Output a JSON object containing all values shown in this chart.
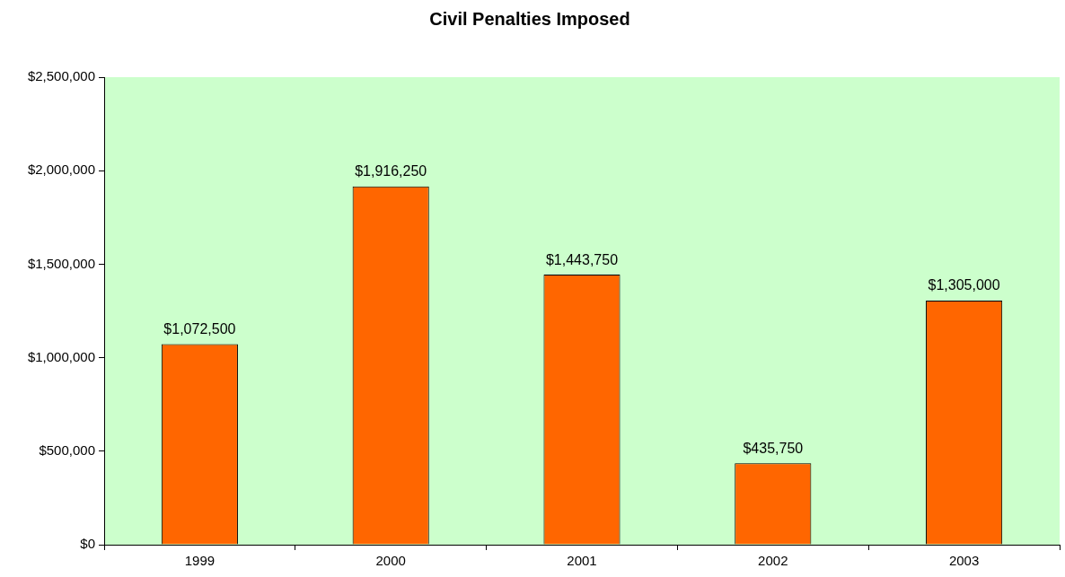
{
  "chart_data": {
    "type": "bar",
    "title": "Civil Penalties Imposed",
    "categories": [
      "1999",
      "2000",
      "2001",
      "2002",
      "2003"
    ],
    "values": [
      1072500,
      1916250,
      1443750,
      435750,
      1305000
    ],
    "value_labels": [
      "$1,072,500",
      "$1,916,250",
      "$1,443,750",
      "$435,750",
      "$1,305,000"
    ],
    "color": "#ff6600",
    "ylim": [
      0,
      2500000
    ],
    "yticks": [
      {
        "value": 0,
        "label": "$0"
      },
      {
        "value": 500000,
        "label": "$500,000"
      },
      {
        "value": 1000000,
        "label": "$1,000,000"
      },
      {
        "value": 1500000,
        "label": "$1,500,000"
      },
      {
        "value": 2000000,
        "label": "$2,000,000"
      },
      {
        "value": 2500000,
        "label": "$2,500,000"
      }
    ],
    "grid": false,
    "legend": false
  }
}
